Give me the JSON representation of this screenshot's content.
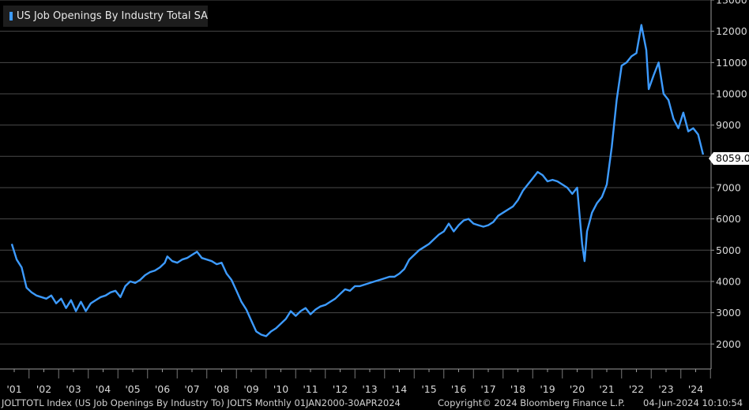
{
  "legend": {
    "label": "US Job Openings By Industry Total SA",
    "color": "#3d9bff"
  },
  "last_value_tag": "8059.0",
  "footer": {
    "left": "JOLTTOTL Index (US Job Openings By Industry To) JOLTS  Monthly 01JAN2000-30APR2024",
    "middle": "Copyright© 2024 Bloomberg Finance L.P.",
    "right": "04-Jun-2024 10:10:54"
  },
  "chart_data": {
    "type": "line",
    "title": "",
    "xlabel": "",
    "ylabel": "",
    "ylim": [
      1200,
      13000
    ],
    "yticks": [
      "2000",
      "3000",
      "4000",
      "5000",
      "6000",
      "7000",
      "8000",
      "9000",
      "10000",
      "11000",
      "12000",
      "13000"
    ],
    "xticks": [
      "'01",
      "'02",
      "'03",
      "'04",
      "'05",
      "'06",
      "'07",
      "'08",
      "'09",
      "'10",
      "'11",
      "'12",
      "'13",
      "'14",
      "'15",
      "'16",
      "'17",
      "'18",
      "'19",
      "'20",
      "'21",
      "'22",
      "'23",
      "'24"
    ],
    "grid": true,
    "legend_position": "top-left",
    "series": [
      {
        "name": "US Job Openings By Industry Total SA",
        "color": "#3d9bff",
        "points": [
          [
            "2000-12",
            5200
          ],
          [
            "2001-02",
            4700
          ],
          [
            "2001-04",
            4450
          ],
          [
            "2001-06",
            3800
          ],
          [
            "2001-08",
            3650
          ],
          [
            "2001-10",
            3550
          ],
          [
            "2001-12",
            3500
          ],
          [
            "2002-02",
            3450
          ],
          [
            "2002-04",
            3550
          ],
          [
            "2002-06",
            3300
          ],
          [
            "2002-08",
            3450
          ],
          [
            "2002-10",
            3150
          ],
          [
            "2002-12",
            3400
          ],
          [
            "2003-02",
            3050
          ],
          [
            "2003-04",
            3350
          ],
          [
            "2003-06",
            3050
          ],
          [
            "2003-08",
            3300
          ],
          [
            "2003-10",
            3400
          ],
          [
            "2003-12",
            3500
          ],
          [
            "2004-02",
            3550
          ],
          [
            "2004-04",
            3650
          ],
          [
            "2004-06",
            3700
          ],
          [
            "2004-08",
            3500
          ],
          [
            "2004-10",
            3850
          ],
          [
            "2004-12",
            4000
          ],
          [
            "2005-02",
            3950
          ],
          [
            "2005-04",
            4050
          ],
          [
            "2005-06",
            4200
          ],
          [
            "2005-08",
            4300
          ],
          [
            "2005-10",
            4350
          ],
          [
            "2005-12",
            4450
          ],
          [
            "2006-02",
            4600
          ],
          [
            "2006-03",
            4800
          ],
          [
            "2006-05",
            4650
          ],
          [
            "2006-07",
            4600
          ],
          [
            "2006-09",
            4700
          ],
          [
            "2006-11",
            4750
          ],
          [
            "2007-01",
            4850
          ],
          [
            "2007-03",
            4950
          ],
          [
            "2007-05",
            4750
          ],
          [
            "2007-07",
            4700
          ],
          [
            "2007-09",
            4650
          ],
          [
            "2007-11",
            4550
          ],
          [
            "2008-01",
            4600
          ],
          [
            "2008-03",
            4250
          ],
          [
            "2008-05",
            4050
          ],
          [
            "2008-07",
            3700
          ],
          [
            "2008-09",
            3350
          ],
          [
            "2008-11",
            3100
          ],
          [
            "2009-01",
            2750
          ],
          [
            "2009-03",
            2400
          ],
          [
            "2009-05",
            2300
          ],
          [
            "2009-07",
            2250
          ],
          [
            "2009-09",
            2400
          ],
          [
            "2009-11",
            2500
          ],
          [
            "2010-01",
            2650
          ],
          [
            "2010-03",
            2800
          ],
          [
            "2010-05",
            3050
          ],
          [
            "2010-07",
            2900
          ],
          [
            "2010-09",
            3050
          ],
          [
            "2010-11",
            3150
          ],
          [
            "2011-01",
            2950
          ],
          [
            "2011-03",
            3100
          ],
          [
            "2011-05",
            3200
          ],
          [
            "2011-07",
            3250
          ],
          [
            "2011-09",
            3350
          ],
          [
            "2011-11",
            3450
          ],
          [
            "2012-01",
            3600
          ],
          [
            "2012-03",
            3750
          ],
          [
            "2012-05",
            3700
          ],
          [
            "2012-07",
            3850
          ],
          [
            "2012-09",
            3850
          ],
          [
            "2012-11",
            3900
          ],
          [
            "2013-01",
            3950
          ],
          [
            "2013-03",
            4000
          ],
          [
            "2013-05",
            4050
          ],
          [
            "2013-07",
            4100
          ],
          [
            "2013-09",
            4150
          ],
          [
            "2013-11",
            4150
          ],
          [
            "2014-01",
            4250
          ],
          [
            "2014-03",
            4400
          ],
          [
            "2014-05",
            4700
          ],
          [
            "2014-07",
            4850
          ],
          [
            "2014-09",
            5000
          ],
          [
            "2014-11",
            5100
          ],
          [
            "2015-01",
            5200
          ],
          [
            "2015-03",
            5350
          ],
          [
            "2015-05",
            5500
          ],
          [
            "2015-07",
            5600
          ],
          [
            "2015-09",
            5850
          ],
          [
            "2015-11",
            5600
          ],
          [
            "2016-01",
            5800
          ],
          [
            "2016-03",
            5950
          ],
          [
            "2016-05",
            6000
          ],
          [
            "2016-07",
            5850
          ],
          [
            "2016-09",
            5800
          ],
          [
            "2016-11",
            5750
          ],
          [
            "2017-01",
            5800
          ],
          [
            "2017-03",
            5900
          ],
          [
            "2017-05",
            6100
          ],
          [
            "2017-07",
            6200
          ],
          [
            "2017-09",
            6300
          ],
          [
            "2017-11",
            6400
          ],
          [
            "2018-01",
            6600
          ],
          [
            "2018-03",
            6900
          ],
          [
            "2018-05",
            7100
          ],
          [
            "2018-07",
            7300
          ],
          [
            "2018-09",
            7500
          ],
          [
            "2018-11",
            7400
          ],
          [
            "2019-01",
            7200
          ],
          [
            "2019-03",
            7250
          ],
          [
            "2019-05",
            7200
          ],
          [
            "2019-07",
            7100
          ],
          [
            "2019-09",
            7000
          ],
          [
            "2019-11",
            6800
          ],
          [
            "2020-01",
            7000
          ],
          [
            "2020-03",
            5200
          ],
          [
            "2020-04",
            4650
          ],
          [
            "2020-05",
            5600
          ],
          [
            "2020-07",
            6200
          ],
          [
            "2020-09",
            6500
          ],
          [
            "2020-11",
            6700
          ],
          [
            "2021-01",
            7100
          ],
          [
            "2021-03",
            8300
          ],
          [
            "2021-05",
            9800
          ],
          [
            "2021-07",
            10900
          ],
          [
            "2021-09",
            11000
          ],
          [
            "2021-11",
            11200
          ],
          [
            "2022-01",
            11300
          ],
          [
            "2022-03",
            12200
          ],
          [
            "2022-05",
            11400
          ],
          [
            "2022-06",
            10150
          ],
          [
            "2022-08",
            10600
          ],
          [
            "2022-10",
            11000
          ],
          [
            "2022-12",
            10000
          ],
          [
            "2023-02",
            9800
          ],
          [
            "2023-04",
            9200
          ],
          [
            "2023-06",
            8900
          ],
          [
            "2023-08",
            9400
          ],
          [
            "2023-10",
            8800
          ],
          [
            "2023-12",
            8900
          ],
          [
            "2024-02",
            8700
          ],
          [
            "2024-04",
            8059
          ]
        ]
      }
    ]
  }
}
